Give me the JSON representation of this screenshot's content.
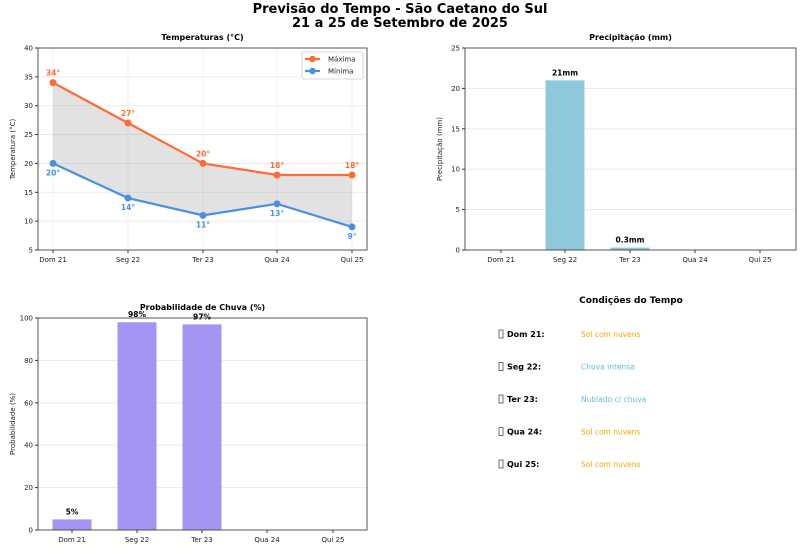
{
  "title_line1": "Previsão do Tempo - São Caetano do Sul",
  "title_line2": "21 a 25 de Setembro de 2025",
  "colors": {
    "max": "#FF6B35",
    "min": "#4A90E2",
    "precip": "#8EC8DA",
    "prob": "#A396F2",
    "sun": "#FFA500",
    "rain": "#5BC0DE"
  },
  "chart_data": [
    {
      "type": "line",
      "title": "Temperaturas (°C)",
      "ylabel": "Temperatura (°C)",
      "categories": [
        "Dom 21",
        "Seg 22",
        "Ter 23",
        "Qua 24",
        "Qui 25"
      ],
      "ylim": [
        5,
        40
      ],
      "yticks": [
        5,
        10,
        15,
        20,
        25,
        30,
        35,
        40
      ],
      "legend_position": "top-right",
      "series": [
        {
          "name": "Máxima",
          "values": [
            34,
            27,
            20,
            18,
            18
          ]
        },
        {
          "name": "Mínima",
          "values": [
            20,
            14,
            11,
            13,
            9
          ]
        }
      ],
      "grid": true
    },
    {
      "type": "bar",
      "title": "Precipitação (mm)",
      "ylabel": "Precipitação (mm)",
      "categories": [
        "Dom 21",
        "Seg 22",
        "Ter 23",
        "Qua 24",
        "Qui 25"
      ],
      "values": [
        0,
        21,
        0.3,
        0,
        0
      ],
      "labels": [
        "",
        "21mm",
        "0.3mm",
        "",
        ""
      ],
      "ylim": [
        0,
        25
      ],
      "yticks": [
        0,
        5,
        10,
        15,
        20,
        25
      ],
      "grid": true
    },
    {
      "type": "bar",
      "title": "Probabilidade de Chuva (%)",
      "ylabel": "Probabilidade (%)",
      "categories": [
        "Dom 21",
        "Seg 22",
        "Ter 23",
        "Qua 24",
        "Qui 25"
      ],
      "values": [
        5,
        98,
        97,
        0,
        0
      ],
      "labels": [
        "5%",
        "98%",
        "97%",
        "",
        ""
      ],
      "ylim": [
        0,
        100
      ],
      "yticks": [
        0,
        20,
        40,
        60,
        80,
        100
      ],
      "grid": true
    }
  ],
  "conditions": {
    "title": "Condições do Tempo",
    "items": [
      {
        "day": "Dom 21:",
        "text": "Sol com nuvens",
        "kind": "sun"
      },
      {
        "day": "Seg 22:",
        "text": "Chuva intensa",
        "kind": "rain"
      },
      {
        "day": "Ter 23:",
        "text": "Nublado c/ chuva",
        "kind": "rain"
      },
      {
        "day": "Qua 24:",
        "text": "Sol com nuvens",
        "kind": "sun"
      },
      {
        "day": "Qui 25:",
        "text": "Sol com nuvens",
        "kind": "sun"
      }
    ]
  }
}
